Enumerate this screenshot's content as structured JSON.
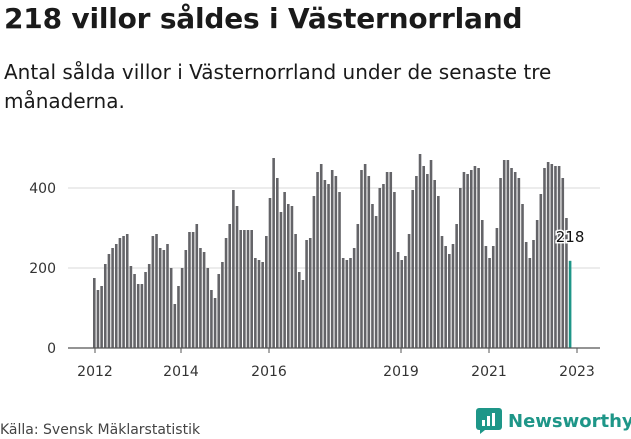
{
  "header": {
    "title": "218 villor såldes i Västernorrland",
    "subtitle": "Antal sålda villor i Västernorrland under de senaste tre månaderna."
  },
  "footer": {
    "source": "Källa: Svensk Mäklarstatistik",
    "brand": "Newsworthy",
    "brand_icon": "newsworthy-chart-icon"
  },
  "colors": {
    "bar": "#646468",
    "highlight": "#1e9688",
    "brand": "#1e9688",
    "axis_text": "#333333",
    "grid": "#d9d9d9"
  },
  "chart_data": {
    "type": "bar",
    "title": "",
    "xlabel": "",
    "ylabel": "",
    "ylim": [
      0,
      500
    ],
    "yticks": [
      0,
      200,
      400
    ],
    "xtick_labels": [
      "2012",
      "2014",
      "2016",
      "2019",
      "2021",
      "2023"
    ],
    "annotation": "218",
    "grid": true,
    "values": [
      175,
      145,
      155,
      210,
      235,
      250,
      260,
      275,
      280,
      285,
      205,
      185,
      160,
      160,
      190,
      210,
      280,
      285,
      250,
      245,
      260,
      200,
      110,
      155,
      200,
      245,
      290,
      290,
      310,
      250,
      240,
      200,
      145,
      125,
      185,
      215,
      275,
      310,
      395,
      355,
      295,
      295,
      295,
      295,
      225,
      220,
      215,
      280,
      375,
      475,
      425,
      340,
      390,
      360,
      355,
      285,
      190,
      170,
      270,
      275,
      380,
      440,
      460,
      420,
      410,
      445,
      430,
      390,
      225,
      220,
      225,
      250,
      310,
      445,
      460,
      430,
      360,
      330,
      400,
      410,
      440,
      440,
      390,
      240,
      220,
      230,
      285,
      395,
      430,
      485,
      455,
      435,
      470,
      420,
      380,
      280,
      255,
      235,
      260,
      310,
      400,
      440,
      435,
      445,
      455,
      450,
      320,
      255,
      225,
      255,
      300,
      425,
      470,
      470,
      450,
      440,
      425,
      360,
      265,
      225,
      270,
      320,
      385,
      450,
      465,
      460,
      455,
      455,
      425,
      325,
      218
    ]
  }
}
